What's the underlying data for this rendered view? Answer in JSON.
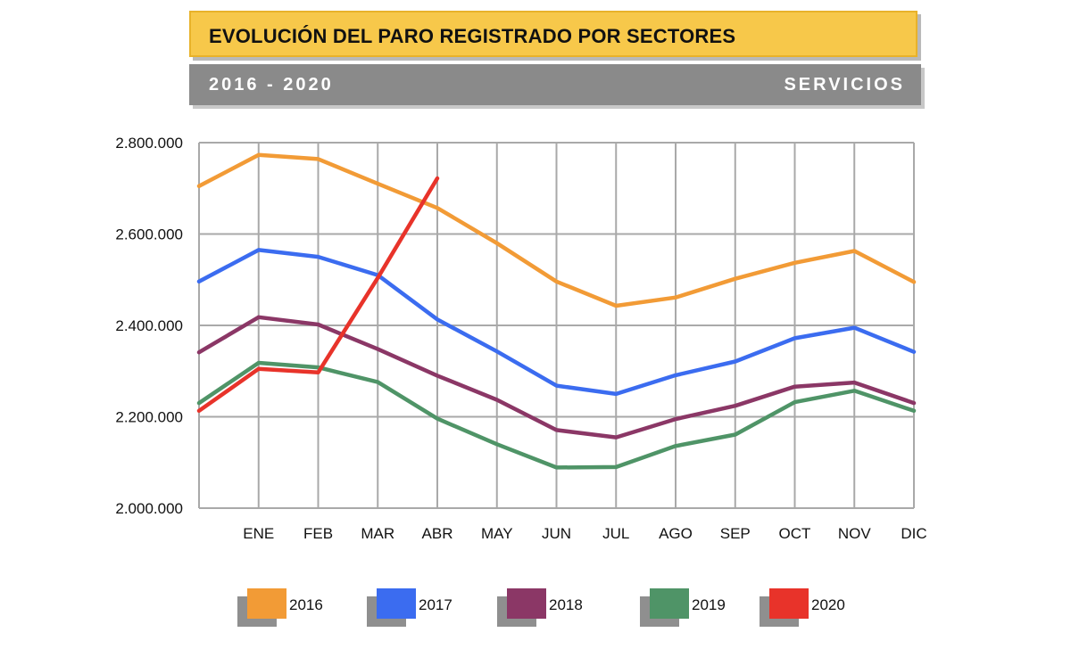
{
  "header": {
    "title": "EVOLUCIÓN DEL PARO REGISTRADO POR SECTORES",
    "years": "2016 - 2020",
    "sector": "SERVICIOS"
  },
  "chart_data": {
    "type": "line",
    "title": "EVOLUCIÓN DEL PARO REGISTRADO POR SECTORES",
    "subtitle": "2016 - 2020",
    "xlabel": "",
    "ylabel": "",
    "ylim": [
      2000000,
      2800000
    ],
    "yticks": [
      2000000,
      2200000,
      2400000,
      2600000,
      2800000
    ],
    "ytick_labels": [
      "2.000.000",
      "2.200.000",
      "2.400.000",
      "2.600.000",
      "2.800.000"
    ],
    "categories": [
      "",
      "ENE",
      "FEB",
      "MAR",
      "ABR",
      "MAY",
      "JUN",
      "JUL",
      "AGO",
      "SEP",
      "OCT",
      "NOV",
      "DIC"
    ],
    "grid": true,
    "legend_position": "bottom",
    "series": [
      {
        "name": "2016",
        "color": "#f29b36",
        "values": [
          2705000,
          2773000,
          2764000,
          2710000,
          2657000,
          2580000,
          2496000,
          2443000,
          2461000,
          2502000,
          2537000,
          2563000,
          2495000
        ]
      },
      {
        "name": "2017",
        "color": "#3b6cf0",
        "values": [
          2496000,
          2565000,
          2550000,
          2510000,
          2413000,
          2343000,
          2268000,
          2250000,
          2291000,
          2321000,
          2372000,
          2395000,
          2342000
        ]
      },
      {
        "name": "2018",
        "color": "#8b3766",
        "values": [
          2341000,
          2418000,
          2402000,
          2348000,
          2290000,
          2237000,
          2171000,
          2155000,
          2195000,
          2224000,
          2266000,
          2275000,
          2230000
        ]
      },
      {
        "name": "2019",
        "color": "#4f9467",
        "values": [
          2230000,
          2318000,
          2308000,
          2276000,
          2196000,
          2140000,
          2089000,
          2090000,
          2136000,
          2161000,
          2232000,
          2257000,
          2213000
        ]
      },
      {
        "name": "2020",
        "color": "#e8332a",
        "values": [
          2213000,
          2305000,
          2297000,
          2504000,
          2722000,
          null,
          null,
          null,
          null,
          null,
          null,
          null,
          null
        ]
      }
    ]
  }
}
